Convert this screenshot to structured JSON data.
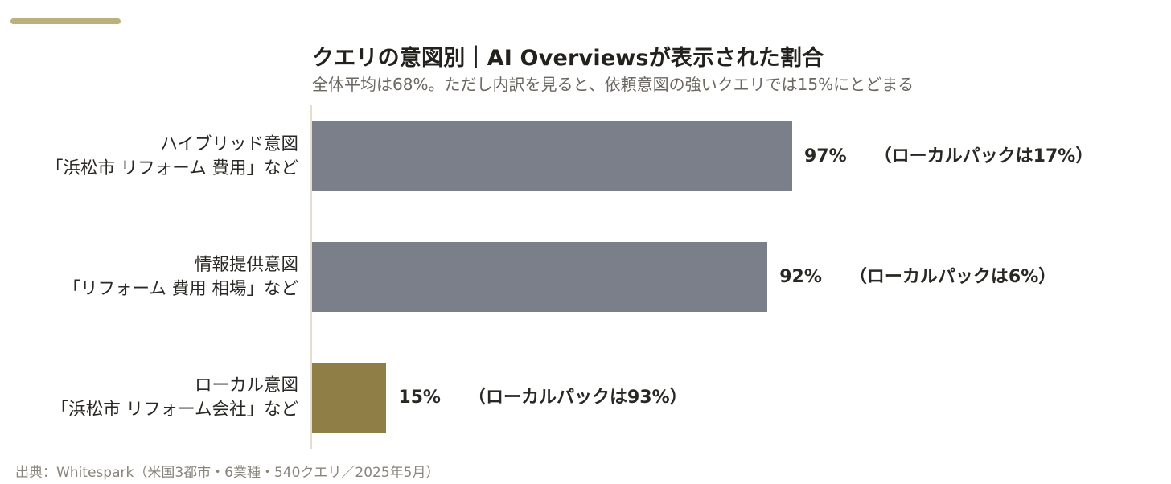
{
  "header": {
    "accent_color": "#bcb07c"
  },
  "chart_data": {
    "type": "bar",
    "orientation": "horizontal",
    "title": "クエリの意図別｜AI Overviewsが表示された割合",
    "subtitle": "全体平均は68%。ただし内訳を見ると、依頼意図の強いクエリでは15%にとどまる",
    "xlim": [
      0,
      100
    ],
    "categories": [
      {
        "line1": "ハイブリッド意図",
        "line2": "「浜松市 リフォーム 費用」など"
      },
      {
        "line1": "情報提供意図",
        "line2": "「リフォーム 費用 相場」など"
      },
      {
        "line1": "ローカル意図",
        "line2": "「浜松市 リフォーム会社」など"
      }
    ],
    "values": [
      97,
      92,
      15
    ],
    "value_labels": [
      "97%",
      "92%",
      "15%"
    ],
    "annotations": [
      "（ローカルパックは17%）",
      "（ローカルパックは6%）",
      "（ローカルパックは93%）"
    ],
    "local_pack_values": [
      17,
      6,
      93
    ],
    "colors": [
      "#7b7f89",
      "#7b7f89",
      "#8f7f47"
    ],
    "grid": false,
    "legend": "none"
  },
  "footer": {
    "source": "出典：Whitespark（米国3都市・6業種・540クエリ／2025年5月）"
  }
}
